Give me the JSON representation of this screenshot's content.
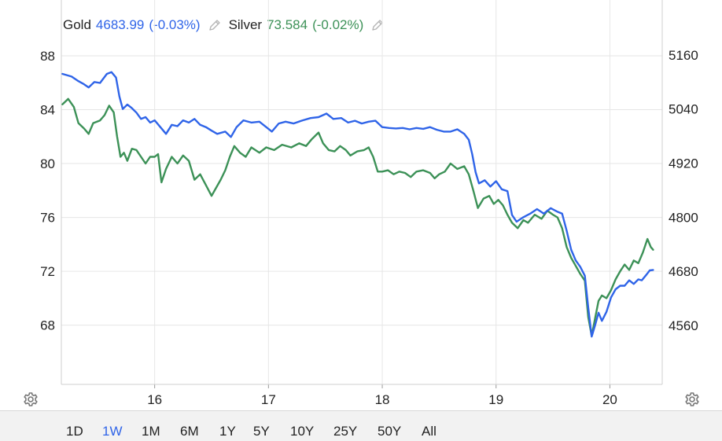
{
  "legend": {
    "gold": {
      "name": "Gold",
      "value": "4683.99",
      "change": "(-0.03%)",
      "color": "#2f64e8",
      "edit_icon": "pencil-icon"
    },
    "silver": {
      "name": "Silver",
      "value": "73.584",
      "change": "(-0.02%)",
      "color": "#3c9157",
      "edit_icon": "pencil-icon"
    }
  },
  "settings_icon": "gear-icon",
  "ranges": [
    "1D",
    "1W",
    "1M",
    "6M",
    "1Y",
    "5Y",
    "10Y",
    "25Y",
    "50Y",
    "All"
  ],
  "active_range": "1W",
  "active_color": "#2f64e8",
  "chart_data": {
    "type": "line",
    "grid": true,
    "x_ticks": [
      {
        "label": "16",
        "day": 16
      },
      {
        "label": "17",
        "day": 17
      },
      {
        "label": "18",
        "day": 18
      },
      {
        "label": "19",
        "day": 19
      },
      {
        "label": "20",
        "day": 20
      }
    ],
    "xlim": [
      15.18,
      20.46
    ],
    "left_axis": {
      "series": "Silver",
      "ticks": [
        88,
        84,
        80,
        76,
        72,
        68
      ],
      "ylim": [
        63.6,
        89.4
      ]
    },
    "right_axis": {
      "series": "Gold",
      "ticks": [
        5160,
        5040,
        4920,
        4800,
        4680,
        4560
      ],
      "ylim": [
        4429,
        5200
      ]
    },
    "series": [
      {
        "name": "Gold",
        "axis": "right",
        "color": "#2f64e8",
        "points": [
          [
            15.19,
            5118
          ],
          [
            15.27,
            5112
          ],
          [
            15.33,
            5102
          ],
          [
            15.38,
            5095
          ],
          [
            15.42,
            5088
          ],
          [
            15.47,
            5100
          ],
          [
            15.52,
            5098
          ],
          [
            15.58,
            5118
          ],
          [
            15.62,
            5122
          ],
          [
            15.66,
            5110
          ],
          [
            15.69,
            5068
          ],
          [
            15.72,
            5040
          ],
          [
            15.76,
            5050
          ],
          [
            15.8,
            5042
          ],
          [
            15.84,
            5032
          ],
          [
            15.88,
            5018
          ],
          [
            15.92,
            5022
          ],
          [
            15.96,
            5010
          ],
          [
            16.0,
            5015
          ],
          [
            16.05,
            5000
          ],
          [
            16.1,
            4985
          ],
          [
            16.15,
            5005
          ],
          [
            16.2,
            5002
          ],
          [
            16.25,
            5015
          ],
          [
            16.3,
            5010
          ],
          [
            16.35,
            5018
          ],
          [
            16.4,
            5005
          ],
          [
            16.45,
            5000
          ],
          [
            16.5,
            4992
          ],
          [
            16.55,
            4985
          ],
          [
            16.62,
            4990
          ],
          [
            16.67,
            4978
          ],
          [
            16.72,
            5000
          ],
          [
            16.78,
            5015
          ],
          [
            16.85,
            5010
          ],
          [
            16.92,
            5012
          ],
          [
            16.98,
            5000
          ],
          [
            17.03,
            4990
          ],
          [
            17.09,
            5008
          ],
          [
            17.15,
            5012
          ],
          [
            17.22,
            5008
          ],
          [
            17.3,
            5015
          ],
          [
            17.37,
            5020
          ],
          [
            17.44,
            5022
          ],
          [
            17.51,
            5030
          ],
          [
            17.57,
            5018
          ],
          [
            17.64,
            5020
          ],
          [
            17.7,
            5010
          ],
          [
            17.76,
            5014
          ],
          [
            17.82,
            5008
          ],
          [
            17.88,
            5012
          ],
          [
            17.94,
            5014
          ],
          [
            18.0,
            5000
          ],
          [
            18.06,
            4998
          ],
          [
            18.12,
            4997
          ],
          [
            18.18,
            4998
          ],
          [
            18.24,
            4995
          ],
          [
            18.3,
            4998
          ],
          [
            18.36,
            4996
          ],
          [
            18.42,
            5000
          ],
          [
            18.48,
            4994
          ],
          [
            18.54,
            4990
          ],
          [
            18.6,
            4990
          ],
          [
            18.66,
            4995
          ],
          [
            18.72,
            4985
          ],
          [
            18.76,
            4972
          ],
          [
            18.79,
            4940
          ],
          [
            18.82,
            4900
          ],
          [
            18.85,
            4875
          ],
          [
            18.9,
            4882
          ],
          [
            18.95,
            4868
          ],
          [
            19.0,
            4880
          ],
          [
            19.05,
            4862
          ],
          [
            19.1,
            4858
          ],
          [
            19.14,
            4805
          ],
          [
            19.18,
            4790
          ],
          [
            19.24,
            4800
          ],
          [
            19.3,
            4808
          ],
          [
            19.36,
            4818
          ],
          [
            19.42,
            4808
          ],
          [
            19.48,
            4820
          ],
          [
            19.54,
            4812
          ],
          [
            19.58,
            4808
          ],
          [
            19.62,
            4770
          ],
          [
            19.66,
            4728
          ],
          [
            19.7,
            4704
          ],
          [
            19.74,
            4690
          ],
          [
            19.78,
            4670
          ],
          [
            19.81,
            4600
          ],
          [
            19.84,
            4535
          ],
          [
            19.87,
            4560
          ],
          [
            19.9,
            4588
          ],
          [
            19.93,
            4570
          ],
          [
            19.97,
            4590
          ],
          [
            20.01,
            4622
          ],
          [
            20.05,
            4640
          ],
          [
            20.09,
            4648
          ],
          [
            20.13,
            4648
          ],
          [
            20.17,
            4660
          ],
          [
            20.21,
            4652
          ],
          [
            20.25,
            4662
          ],
          [
            20.28,
            4660
          ],
          [
            20.32,
            4672
          ],
          [
            20.35,
            4682
          ],
          [
            20.38,
            4683
          ]
        ]
      },
      {
        "name": "Silver",
        "axis": "left",
        "color": "#3c9157",
        "points": [
          [
            15.19,
            84.4
          ],
          [
            15.24,
            84.8
          ],
          [
            15.29,
            84.2
          ],
          [
            15.33,
            83.0
          ],
          [
            15.38,
            82.6
          ],
          [
            15.42,
            82.2
          ],
          [
            15.46,
            83.0
          ],
          [
            15.52,
            83.2
          ],
          [
            15.56,
            83.6
          ],
          [
            15.6,
            84.3
          ],
          [
            15.64,
            83.8
          ],
          [
            15.67,
            82.0
          ],
          [
            15.7,
            80.5
          ],
          [
            15.73,
            80.8
          ],
          [
            15.76,
            80.2
          ],
          [
            15.8,
            81.1
          ],
          [
            15.84,
            81.0
          ],
          [
            15.88,
            80.5
          ],
          [
            15.92,
            80.0
          ],
          [
            15.96,
            80.5
          ],
          [
            16.0,
            80.5
          ],
          [
            16.03,
            80.7
          ],
          [
            16.06,
            78.6
          ],
          [
            16.1,
            79.6
          ],
          [
            16.15,
            80.5
          ],
          [
            16.2,
            80.0
          ],
          [
            16.25,
            80.6
          ],
          [
            16.3,
            80.2
          ],
          [
            16.35,
            78.8
          ],
          [
            16.4,
            79.2
          ],
          [
            16.45,
            78.4
          ],
          [
            16.5,
            77.6
          ],
          [
            16.54,
            78.2
          ],
          [
            16.58,
            78.8
          ],
          [
            16.62,
            79.5
          ],
          [
            16.66,
            80.5
          ],
          [
            16.7,
            81.3
          ],
          [
            16.75,
            80.8
          ],
          [
            16.8,
            80.5
          ],
          [
            16.85,
            81.2
          ],
          [
            16.92,
            80.8
          ],
          [
            16.98,
            81.2
          ],
          [
            17.05,
            81.0
          ],
          [
            17.12,
            81.4
          ],
          [
            17.2,
            81.2
          ],
          [
            17.27,
            81.5
          ],
          [
            17.33,
            81.3
          ],
          [
            17.38,
            81.8
          ],
          [
            17.44,
            82.3
          ],
          [
            17.48,
            81.5
          ],
          [
            17.53,
            81.0
          ],
          [
            17.58,
            80.9
          ],
          [
            17.63,
            81.3
          ],
          [
            17.68,
            81.0
          ],
          [
            17.72,
            80.6
          ],
          [
            17.78,
            80.9
          ],
          [
            17.84,
            81.0
          ],
          [
            17.88,
            81.2
          ],
          [
            17.92,
            80.5
          ],
          [
            17.96,
            79.4
          ],
          [
            18.0,
            79.4
          ],
          [
            18.05,
            79.5
          ],
          [
            18.1,
            79.2
          ],
          [
            18.15,
            79.4
          ],
          [
            18.2,
            79.3
          ],
          [
            18.25,
            79.0
          ],
          [
            18.3,
            79.4
          ],
          [
            18.36,
            79.5
          ],
          [
            18.42,
            79.3
          ],
          [
            18.46,
            78.9
          ],
          [
            18.5,
            79.2
          ],
          [
            18.55,
            79.4
          ],
          [
            18.6,
            80.0
          ],
          [
            18.66,
            79.6
          ],
          [
            18.72,
            79.8
          ],
          [
            18.76,
            79.2
          ],
          [
            18.8,
            78.0
          ],
          [
            18.84,
            76.7
          ],
          [
            18.89,
            77.4
          ],
          [
            18.94,
            77.6
          ],
          [
            18.98,
            77.0
          ],
          [
            19.02,
            77.3
          ],
          [
            19.06,
            76.9
          ],
          [
            19.1,
            76.2
          ],
          [
            19.14,
            75.6
          ],
          [
            19.19,
            75.2
          ],
          [
            19.24,
            75.8
          ],
          [
            19.28,
            75.6
          ],
          [
            19.34,
            76.2
          ],
          [
            19.4,
            75.9
          ],
          [
            19.45,
            76.5
          ],
          [
            19.5,
            76.2
          ],
          [
            19.54,
            76.0
          ],
          [
            19.58,
            75.2
          ],
          [
            19.62,
            73.8
          ],
          [
            19.66,
            73.0
          ],
          [
            19.7,
            72.4
          ],
          [
            19.74,
            71.8
          ],
          [
            19.78,
            71.3
          ],
          [
            19.81,
            68.6
          ],
          [
            19.84,
            67.2
          ],
          [
            19.87,
            68.5
          ],
          [
            19.9,
            69.8
          ],
          [
            19.93,
            70.2
          ],
          [
            19.97,
            70.0
          ],
          [
            20.01,
            70.6
          ],
          [
            20.05,
            71.4
          ],
          [
            20.09,
            72.0
          ],
          [
            20.13,
            72.5
          ],
          [
            20.17,
            72.1
          ],
          [
            20.21,
            72.8
          ],
          [
            20.25,
            72.6
          ],
          [
            20.29,
            73.4
          ],
          [
            20.33,
            74.4
          ],
          [
            20.36,
            73.8
          ],
          [
            20.38,
            73.6
          ]
        ]
      }
    ]
  }
}
